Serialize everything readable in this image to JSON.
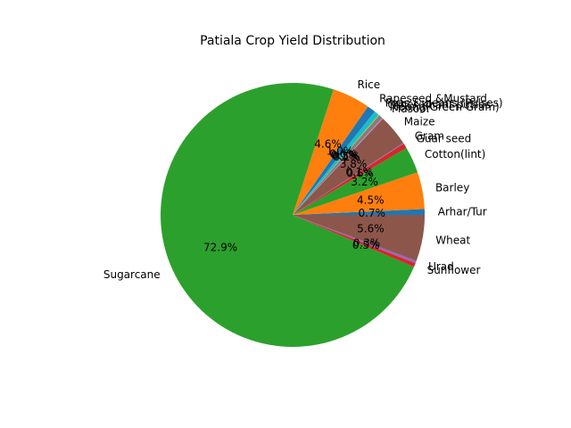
{
  "chart_data": {
    "type": "pie",
    "title": "Patiala Crop Yield Distribution",
    "start_angle_deg": 0,
    "direction": "counterclockwise",
    "slices": [
      {
        "label": "Arhar/Tur",
        "value": 0.7,
        "pct_label": "0.7%",
        "color": "#1f77b4"
      },
      {
        "label": "Barley",
        "value": 4.5,
        "pct_label": "4.5%",
        "color": "#ff7f0e"
      },
      {
        "label": "Cotton(lint)",
        "value": 3.2,
        "pct_label": "3.2%",
        "color": "#2ca02c"
      },
      {
        "label": "Guar seed",
        "value": 0.6,
        "pct_label": "0.6%",
        "color": "#d62728"
      },
      {
        "label": "Gram",
        "value": 0.1,
        "pct_label": "0.1%",
        "color": "#9467bd"
      },
      {
        "label": "Maize",
        "value": 3.8,
        "pct_label": "3.8%",
        "color": "#8c564b"
      },
      {
        "label": "Masoor",
        "value": 0.1,
        "pct_label": "0.1%",
        "color": "#e377c2"
      },
      {
        "label": "Moong(Green Gram)",
        "value": 0.5,
        "pct_label": "0.5%",
        "color": "#7f7f7f"
      },
      {
        "label": "Other Kharif pulses",
        "value": 0.1,
        "pct_label": "0.1%",
        "color": "#bcbd22"
      },
      {
        "label": "Peas & beans (Pulses)",
        "value": 0.6,
        "pct_label": "0.6%",
        "color": "#17becf"
      },
      {
        "label": "Rapeseed &Mustard",
        "value": 1.0,
        "pct_label": "1.0%",
        "color": "#1f77b4"
      },
      {
        "label": "Rice",
        "value": 4.6,
        "pct_label": "4.6%",
        "color": "#ff7f0e"
      },
      {
        "label": "Sugarcane",
        "value": 72.9,
        "pct_label": "72.9%",
        "color": "#2ca02c"
      },
      {
        "label": "Sunflower",
        "value": 0.5,
        "pct_label": "0.5%",
        "color": "#d62728"
      },
      {
        "label": "Urad",
        "value": 0.3,
        "pct_label": "0.3%",
        "color": "#9467bd"
      },
      {
        "label": "Wheat",
        "value": 5.6,
        "pct_label": "5.6%",
        "color": "#8c564b"
      }
    ]
  }
}
